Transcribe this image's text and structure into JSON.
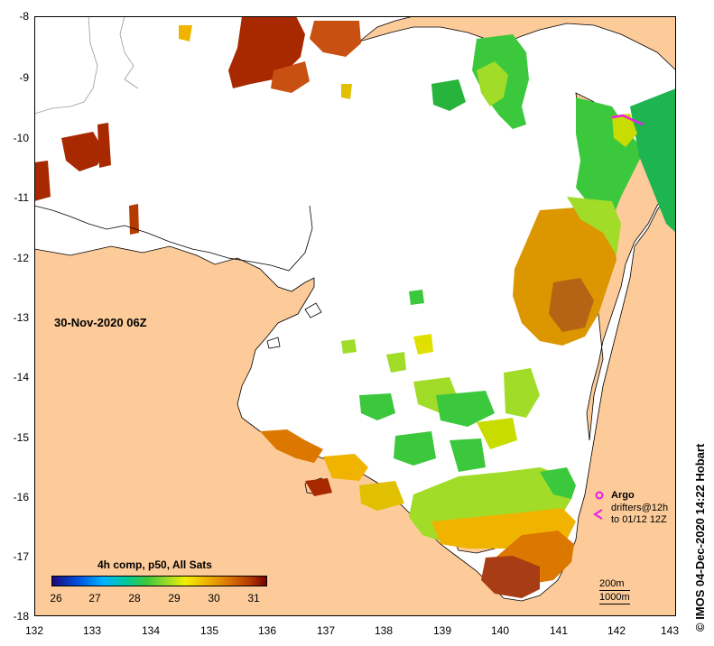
{
  "map": {
    "date_label": "30-Nov-2020 06Z",
    "credit": "© IMOS 04-Dec-2020 14:22 Hobart",
    "colors": {
      "land": "#fccb99",
      "nodata": "#ffffff",
      "argo": "#e81ee8",
      "coast": "#000000"
    },
    "lon_ticks": [
      "132",
      "133",
      "134",
      "135",
      "136",
      "137",
      "138",
      "139",
      "140",
      "141",
      "142",
      "143"
    ],
    "lat_ticks": [
      "-8",
      "-9",
      "-10",
      "-11",
      "-12",
      "-13",
      "-14",
      "-15",
      "-16",
      "-17",
      "-18"
    ],
    "lon_range": [
      132,
      143
    ],
    "lat_range": [
      -18,
      -8
    ]
  },
  "colorbar": {
    "title": "4h comp, p50, All Sats",
    "ticks": [
      "26",
      "27",
      "28",
      "29",
      "30",
      "31"
    ],
    "range": [
      25.8,
      31.6
    ],
    "colors": [
      "#1a0a7a",
      "#0050e0",
      "#00b4ff",
      "#00c8a0",
      "#3cc83c",
      "#a0dc28",
      "#f0f000",
      "#f0b400",
      "#dc7800",
      "#b43c00",
      "#780000"
    ]
  },
  "legend": {
    "argo_label": "Argo",
    "drifters_label": "drifters@12h",
    "drifters_to": "to 01/12 12Z",
    "depth_200": "200m",
    "depth_1000": "1000m"
  }
}
